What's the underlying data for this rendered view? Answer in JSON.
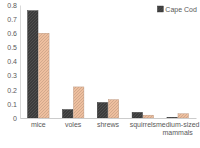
{
  "chart_data": {
    "type": "bar",
    "categories": [
      "mice",
      "voles",
      "shrews",
      "squirrels",
      "medium-sized mammals"
    ],
    "series": [
      {
        "name": "Cape Cod",
        "color": "#3c3c3c",
        "values": [
          0.76,
          0.06,
          0.11,
          0.04,
          0.005
        ]
      },
      {
        "color": "#eebf9f",
        "values": [
          0.6,
          0.22,
          0.13,
          0.02,
          0.03
        ]
      }
    ],
    "ylim": [
      0,
      0.8
    ],
    "yticks": [
      0,
      0.1,
      0.2,
      0.3,
      0.4,
      0.5,
      0.6,
      0.7,
      0.8
    ],
    "grid": false,
    "legend": "top-right"
  }
}
